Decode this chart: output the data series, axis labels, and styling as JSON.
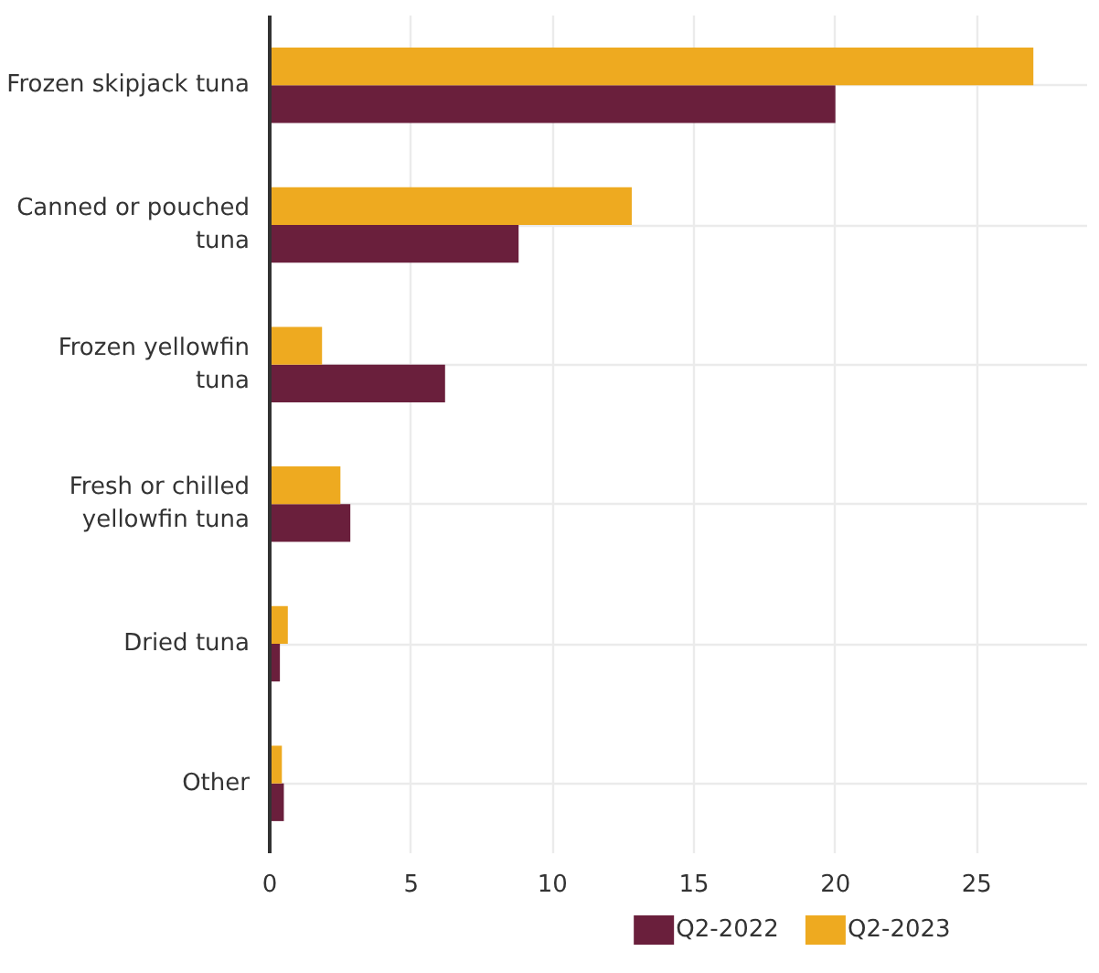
{
  "chart_data": {
    "type": "bar",
    "orientation": "horizontal",
    "categories": [
      "Frozen skipjack tuna",
      "Canned or pouched tuna",
      "Frozen yellowfin tuna",
      "Fresh or chilled yellowfin tuna",
      "Dried tuna",
      "Other"
    ],
    "series": [
      {
        "name": "Q2-2022",
        "color": "#6a1f3c",
        "values": [
          20.0,
          8.8,
          6.2,
          2.85,
          0.36,
          0.5
        ]
      },
      {
        "name": "Q2-2023",
        "color": "#eeaa20",
        "values": [
          27.0,
          12.8,
          1.85,
          2.5,
          0.64,
          0.43
        ]
      }
    ],
    "xlim": [
      0,
      28.9
    ],
    "xticks": [
      0,
      5,
      10,
      15,
      20,
      25
    ],
    "grid": true,
    "legend": "bottom"
  }
}
